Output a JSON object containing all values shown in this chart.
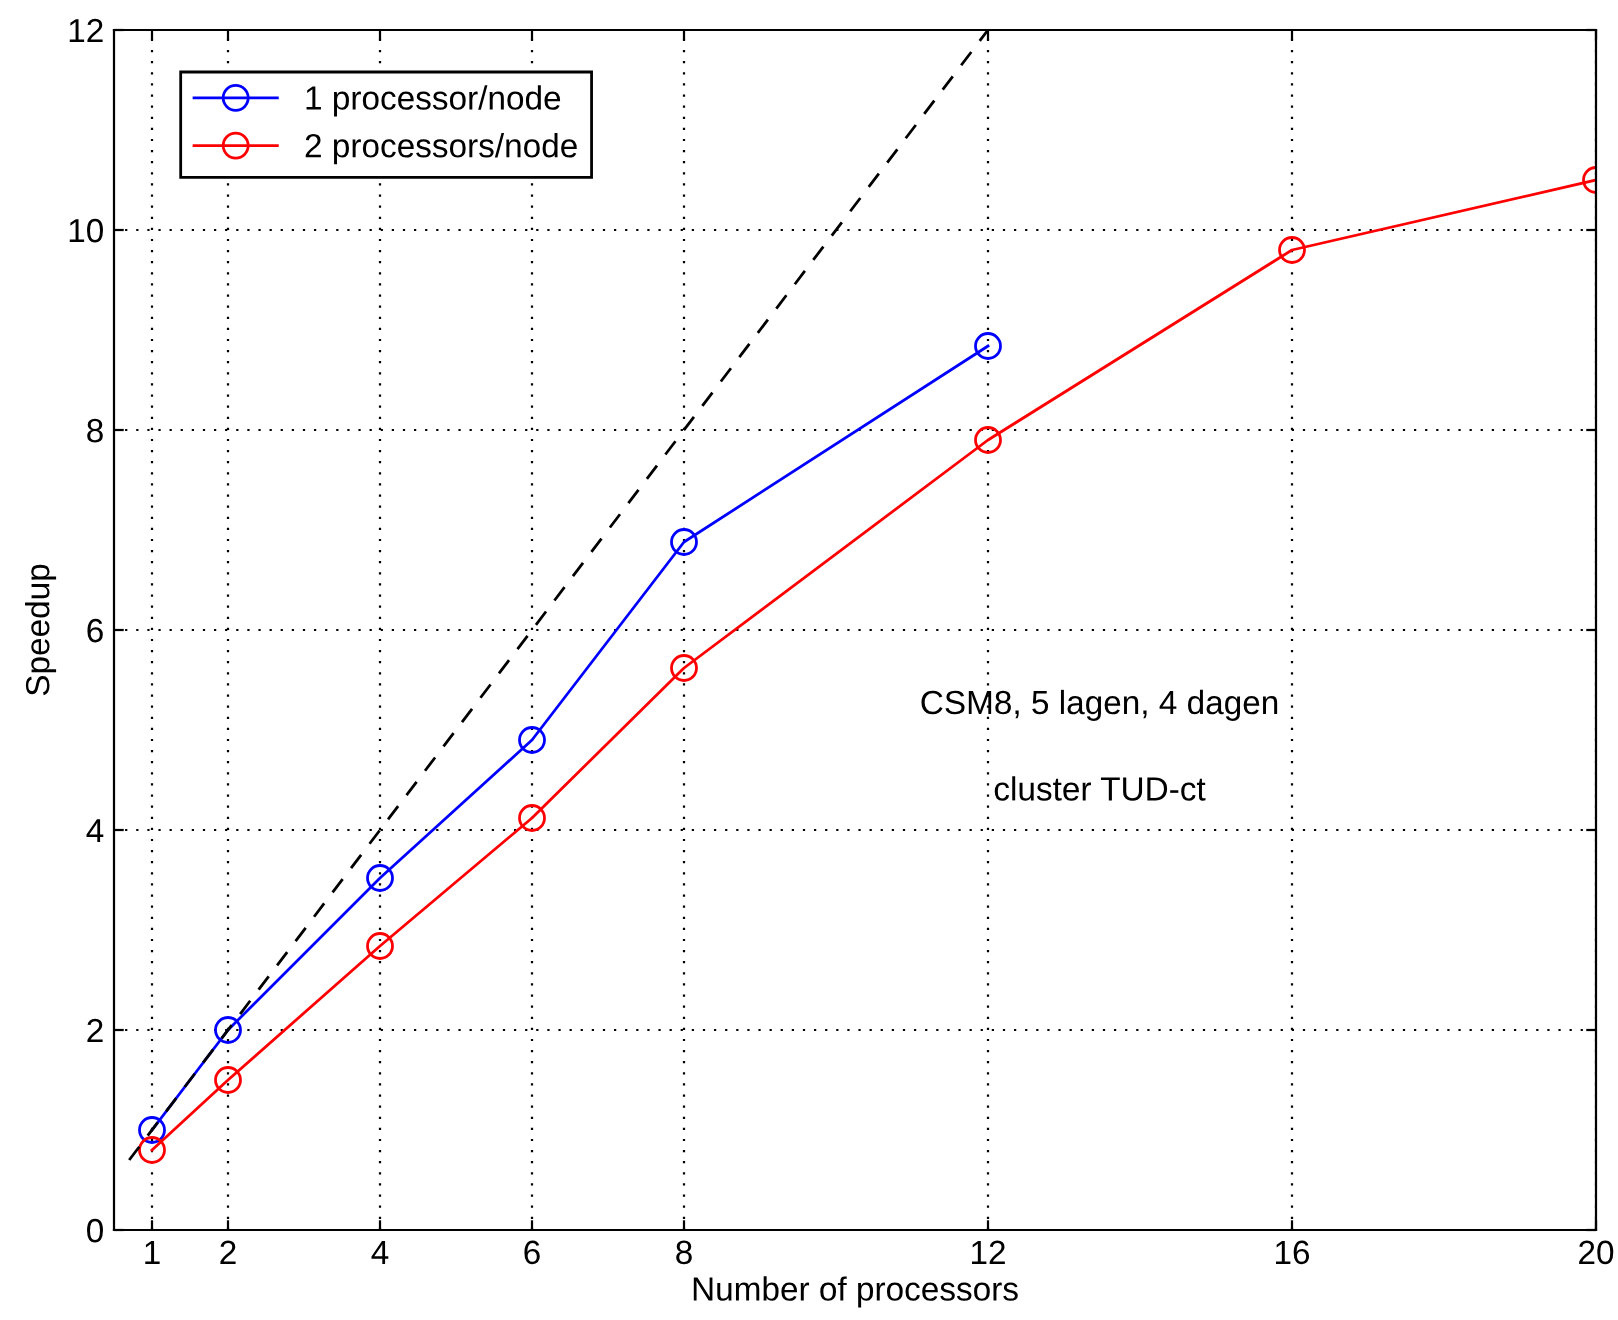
{
  "chart_data": {
    "type": "line",
    "xlabel": "Number of processors",
    "ylabel": "Speedup",
    "x": [
      1,
      2,
      4,
      6,
      8,
      12,
      16,
      20
    ],
    "series": [
      {
        "name": "1 processor/node",
        "color": "#0000ff",
        "values": [
          1.0,
          2.0,
          3.52,
          4.9,
          6.88,
          8.84,
          null,
          null
        ]
      },
      {
        "name": "2 processors/node",
        "color": "#ff0000",
        "values": [
          0.8,
          1.5,
          2.84,
          4.12,
          5.62,
          7.9,
          9.8,
          10.5
        ]
      },
      {
        "color": "#000000",
        "x": [
          0.7,
          12
        ],
        "values": [
          0.7,
          12
        ],
        "marker": "none",
        "line_style": "dashed"
      }
    ],
    "marker": "circle",
    "line_style": "solid",
    "xlim": [
      0.5,
      20
    ],
    "xticks": [
      1,
      2,
      4,
      6,
      8,
      12,
      16,
      20
    ],
    "ylim": [
      0,
      12
    ],
    "yticks": [
      0,
      2,
      4,
      6,
      8,
      10,
      12
    ],
    "grid": true,
    "legend": "top left",
    "annotations": [
      "CSM8, 5 lagen, 4 dagen",
      "cluster TUD-ct"
    ]
  }
}
